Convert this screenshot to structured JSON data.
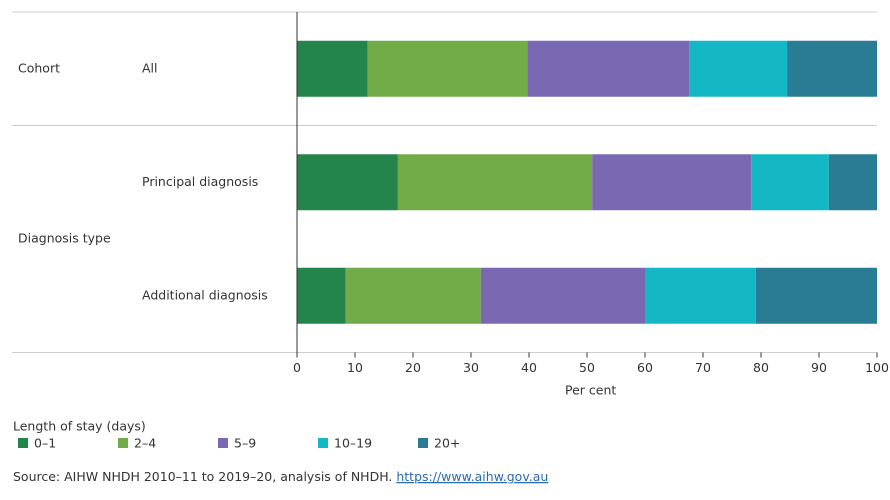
{
  "chart_data": {
    "type": "bar",
    "orientation": "horizontal",
    "stacked": true,
    "groups": [
      {
        "name": "Cohort",
        "categories": [
          "All"
        ]
      },
      {
        "name": "Diagnosis type",
        "categories": [
          "Principal diagnosis",
          "Additional diagnosis"
        ]
      }
    ],
    "series": [
      {
        "name": "0–1",
        "color": "#23854a",
        "values": [
          12.2,
          17.4,
          8.4
        ]
      },
      {
        "name": "2–4",
        "color": "#72ac48",
        "values": [
          27.5,
          33.5,
          23.3
        ]
      },
      {
        "name": "5–9",
        "color": "#7b68b3",
        "values": [
          27.9,
          27.4,
          28.3
        ]
      },
      {
        "name": "10–19",
        "color": "#14b8c4",
        "values": [
          16.9,
          13.4,
          19.1
        ]
      },
      {
        "name": "20+",
        "color": "#2a7b94",
        "values": [
          15.5,
          8.3,
          20.9
        ]
      }
    ],
    "xlim": [
      0,
      100
    ],
    "xticks": [
      0,
      10,
      20,
      30,
      40,
      50,
      60,
      70,
      80,
      90,
      100
    ],
    "xlabel": "Per cent",
    "legend_title": "Length of stay (days)",
    "source": "Source: AIHW NHDH 2010–11 to 2019–20, analysis of NHDH.",
    "source_link": "https://www.aihw.gov.au"
  }
}
